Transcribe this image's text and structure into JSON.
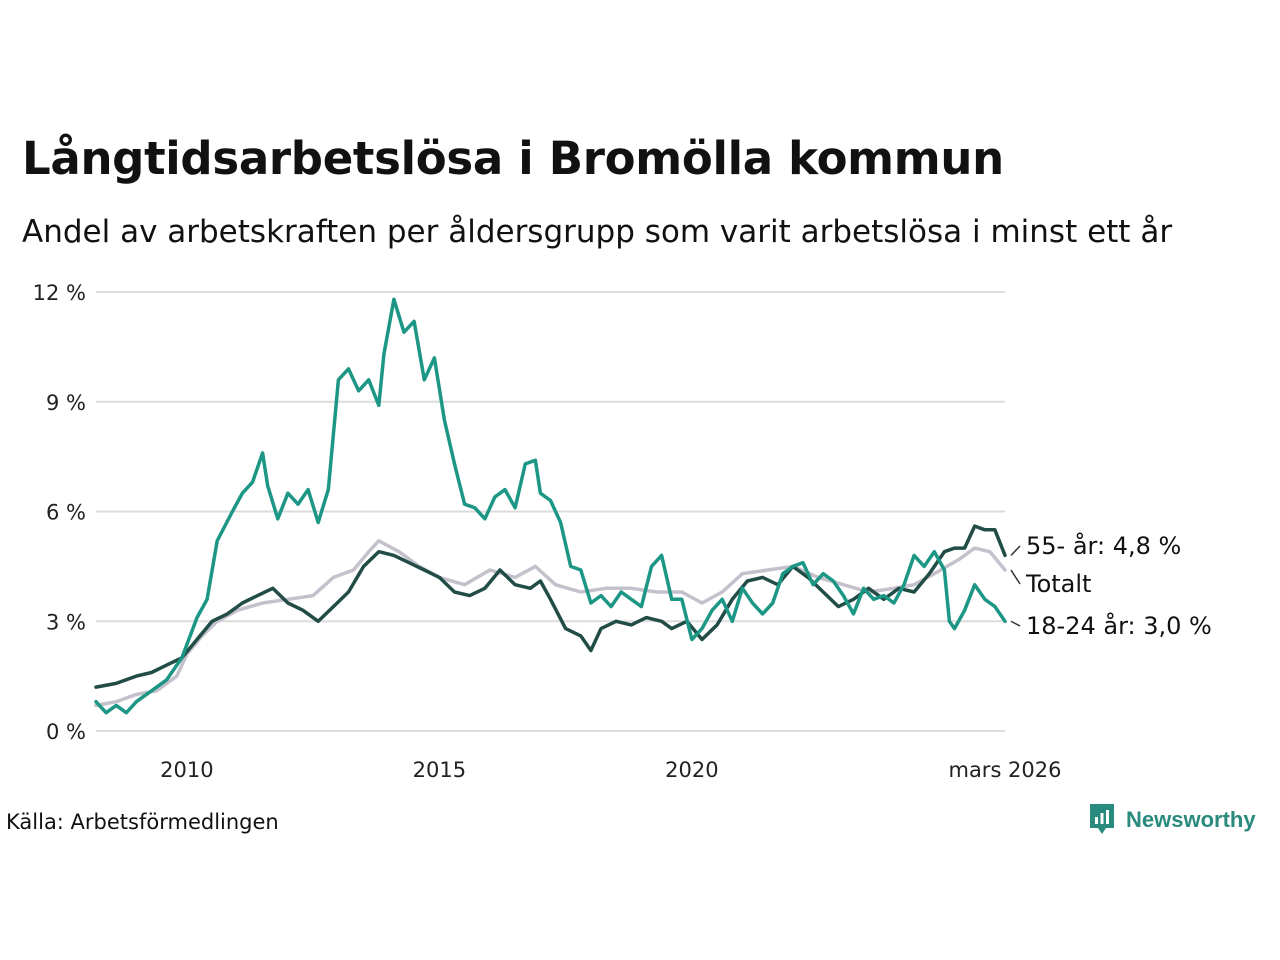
{
  "title": "Långtidsarbetslösa i Bromölla kommun",
  "subtitle": "Andel av arbetskraften per åldersgrupp som varit arbetslösa i minst ett år",
  "source": "Källa: Arbetsförmedlingen",
  "brand": {
    "name": "Newsworthy",
    "icon": "newsworthy-logo-icon",
    "color": "#2b8a7e"
  },
  "chart_data": {
    "type": "line",
    "title": "Långtidsarbetslösa i Bromölla kommun",
    "xlabel": "",
    "ylabel": "",
    "x_range": [
      2008.2,
      2026.2
    ],
    "ylim": [
      0,
      12
    ],
    "y_ticks": [
      {
        "value": 0,
        "label": "0 %"
      },
      {
        "value": 3,
        "label": "3 %"
      },
      {
        "value": 6,
        "label": "6 %"
      },
      {
        "value": 9,
        "label": "9 %"
      },
      {
        "value": 12,
        "label": "12 %"
      }
    ],
    "x_ticks": [
      {
        "value": 2010,
        "label": "2010"
      },
      {
        "value": 2015,
        "label": "2015"
      },
      {
        "value": 2020,
        "label": "2020"
      },
      {
        "value": 2026.2,
        "label": "mars 2026"
      }
    ],
    "grid": true,
    "series": [
      {
        "name": "Totalt",
        "label": "Totalt",
        "color": "#c4c0cc",
        "points": [
          [
            2008.2,
            0.7
          ],
          [
            2008.6,
            0.8
          ],
          [
            2009.0,
            1.0
          ],
          [
            2009.4,
            1.1
          ],
          [
            2009.8,
            1.5
          ],
          [
            2010.0,
            2.1
          ],
          [
            2010.3,
            2.6
          ],
          [
            2010.6,
            3.0
          ],
          [
            2011.0,
            3.3
          ],
          [
            2011.5,
            3.5
          ],
          [
            2012.0,
            3.6
          ],
          [
            2012.5,
            3.7
          ],
          [
            2012.9,
            4.2
          ],
          [
            2013.3,
            4.4
          ],
          [
            2013.6,
            4.9
          ],
          [
            2013.8,
            5.2
          ],
          [
            2014.2,
            4.9
          ],
          [
            2014.6,
            4.5
          ],
          [
            2015.0,
            4.2
          ],
          [
            2015.5,
            4.0
          ],
          [
            2016.0,
            4.4
          ],
          [
            2016.5,
            4.2
          ],
          [
            2016.9,
            4.5
          ],
          [
            2017.3,
            4.0
          ],
          [
            2017.8,
            3.8
          ],
          [
            2018.3,
            3.9
          ],
          [
            2018.8,
            3.9
          ],
          [
            2019.3,
            3.8
          ],
          [
            2019.8,
            3.8
          ],
          [
            2020.2,
            3.5
          ],
          [
            2020.6,
            3.8
          ],
          [
            2021.0,
            4.3
          ],
          [
            2021.5,
            4.4
          ],
          [
            2022.0,
            4.5
          ],
          [
            2022.5,
            4.2
          ],
          [
            2023.0,
            4.0
          ],
          [
            2023.5,
            3.8
          ],
          [
            2024.0,
            3.9
          ],
          [
            2024.4,
            4.0
          ],
          [
            2024.8,
            4.3
          ],
          [
            2025.3,
            4.7
          ],
          [
            2025.6,
            5.0
          ],
          [
            2025.9,
            4.9
          ],
          [
            2026.2,
            4.4
          ]
        ]
      },
      {
        "name": "55- år",
        "label": "55- år: 4,8 %",
        "color": "#214d46",
        "points": [
          [
            2008.2,
            1.2
          ],
          [
            2008.6,
            1.3
          ],
          [
            2009.0,
            1.5
          ],
          [
            2009.3,
            1.6
          ],
          [
            2009.6,
            1.8
          ],
          [
            2009.9,
            2.0
          ],
          [
            2010.2,
            2.5
          ],
          [
            2010.5,
            3.0
          ],
          [
            2010.8,
            3.2
          ],
          [
            2011.1,
            3.5
          ],
          [
            2011.4,
            3.7
          ],
          [
            2011.7,
            3.9
          ],
          [
            2012.0,
            3.5
          ],
          [
            2012.3,
            3.3
          ],
          [
            2012.6,
            3.0
          ],
          [
            2012.9,
            3.4
          ],
          [
            2013.2,
            3.8
          ],
          [
            2013.5,
            4.5
          ],
          [
            2013.8,
            4.9
          ],
          [
            2014.1,
            4.8
          ],
          [
            2014.4,
            4.6
          ],
          [
            2014.7,
            4.4
          ],
          [
            2015.0,
            4.2
          ],
          [
            2015.3,
            3.8
          ],
          [
            2015.6,
            3.7
          ],
          [
            2015.9,
            3.9
          ],
          [
            2016.2,
            4.4
          ],
          [
            2016.5,
            4.0
          ],
          [
            2016.8,
            3.9
          ],
          [
            2017.0,
            4.1
          ],
          [
            2017.2,
            3.6
          ],
          [
            2017.5,
            2.8
          ],
          [
            2017.8,
            2.6
          ],
          [
            2018.0,
            2.2
          ],
          [
            2018.2,
            2.8
          ],
          [
            2018.5,
            3.0
          ],
          [
            2018.8,
            2.9
          ],
          [
            2019.1,
            3.1
          ],
          [
            2019.4,
            3.0
          ],
          [
            2019.6,
            2.8
          ],
          [
            2019.9,
            3.0
          ],
          [
            2020.2,
            2.5
          ],
          [
            2020.5,
            2.9
          ],
          [
            2020.8,
            3.6
          ],
          [
            2021.1,
            4.1
          ],
          [
            2021.4,
            4.2
          ],
          [
            2021.7,
            4.0
          ],
          [
            2022.0,
            4.5
          ],
          [
            2022.3,
            4.2
          ],
          [
            2022.6,
            3.8
          ],
          [
            2022.9,
            3.4
          ],
          [
            2023.2,
            3.6
          ],
          [
            2023.5,
            3.9
          ],
          [
            2023.8,
            3.6
          ],
          [
            2024.1,
            3.9
          ],
          [
            2024.4,
            3.8
          ],
          [
            2024.7,
            4.3
          ],
          [
            2025.0,
            4.9
          ],
          [
            2025.2,
            5.0
          ],
          [
            2025.4,
            5.0
          ],
          [
            2025.6,
            5.6
          ],
          [
            2025.8,
            5.5
          ],
          [
            2026.0,
            5.5
          ],
          [
            2026.2,
            4.8
          ]
        ]
      },
      {
        "name": "18-24 år",
        "label": "18-24 år: 3,0 %",
        "color": "#1c9685",
        "points": [
          [
            2008.2,
            0.8
          ],
          [
            2008.4,
            0.5
          ],
          [
            2008.6,
            0.7
          ],
          [
            2008.8,
            0.5
          ],
          [
            2009.0,
            0.8
          ],
          [
            2009.3,
            1.1
          ],
          [
            2009.6,
            1.4
          ],
          [
            2009.9,
            2.0
          ],
          [
            2010.2,
            3.1
          ],
          [
            2010.4,
            3.6
          ],
          [
            2010.6,
            5.2
          ],
          [
            2010.9,
            6.0
          ],
          [
            2011.1,
            6.5
          ],
          [
            2011.3,
            6.8
          ],
          [
            2011.5,
            7.6
          ],
          [
            2011.6,
            6.7
          ],
          [
            2011.8,
            5.8
          ],
          [
            2012.0,
            6.5
          ],
          [
            2012.2,
            6.2
          ],
          [
            2012.4,
            6.6
          ],
          [
            2012.6,
            5.7
          ],
          [
            2012.8,
            6.6
          ],
          [
            2013.0,
            9.6
          ],
          [
            2013.2,
            9.9
          ],
          [
            2013.4,
            9.3
          ],
          [
            2013.6,
            9.6
          ],
          [
            2013.8,
            8.9
          ],
          [
            2013.9,
            10.3
          ],
          [
            2014.1,
            11.8
          ],
          [
            2014.3,
            10.9
          ],
          [
            2014.5,
            11.2
          ],
          [
            2014.7,
            9.6
          ],
          [
            2014.9,
            10.2
          ],
          [
            2015.1,
            8.5
          ],
          [
            2015.3,
            7.3
          ],
          [
            2015.5,
            6.2
          ],
          [
            2015.7,
            6.1
          ],
          [
            2015.9,
            5.8
          ],
          [
            2016.1,
            6.4
          ],
          [
            2016.3,
            6.6
          ],
          [
            2016.5,
            6.1
          ],
          [
            2016.7,
            7.3
          ],
          [
            2016.9,
            7.4
          ],
          [
            2017.0,
            6.5
          ],
          [
            2017.2,
            6.3
          ],
          [
            2017.4,
            5.7
          ],
          [
            2017.6,
            4.5
          ],
          [
            2017.8,
            4.4
          ],
          [
            2018.0,
            3.5
          ],
          [
            2018.2,
            3.7
          ],
          [
            2018.4,
            3.4
          ],
          [
            2018.6,
            3.8
          ],
          [
            2018.8,
            3.6
          ],
          [
            2019.0,
            3.4
          ],
          [
            2019.2,
            4.5
          ],
          [
            2019.4,
            4.8
          ],
          [
            2019.6,
            3.6
          ],
          [
            2019.8,
            3.6
          ],
          [
            2020.0,
            2.5
          ],
          [
            2020.2,
            2.8
          ],
          [
            2020.4,
            3.3
          ],
          [
            2020.6,
            3.6
          ],
          [
            2020.8,
            3.0
          ],
          [
            2021.0,
            3.9
          ],
          [
            2021.2,
            3.5
          ],
          [
            2021.4,
            3.2
          ],
          [
            2021.6,
            3.5
          ],
          [
            2021.8,
            4.3
          ],
          [
            2022.0,
            4.5
          ],
          [
            2022.2,
            4.6
          ],
          [
            2022.4,
            4.0
          ],
          [
            2022.6,
            4.3
          ],
          [
            2022.8,
            4.1
          ],
          [
            2023.0,
            3.7
          ],
          [
            2023.2,
            3.2
          ],
          [
            2023.4,
            3.9
          ],
          [
            2023.6,
            3.6
          ],
          [
            2023.8,
            3.7
          ],
          [
            2024.0,
            3.5
          ],
          [
            2024.2,
            4.0
          ],
          [
            2024.4,
            4.8
          ],
          [
            2024.6,
            4.5
          ],
          [
            2024.8,
            4.9
          ],
          [
            2025.0,
            4.4
          ],
          [
            2025.1,
            3.0
          ],
          [
            2025.2,
            2.8
          ],
          [
            2025.4,
            3.3
          ],
          [
            2025.6,
            4.0
          ],
          [
            2025.8,
            3.6
          ],
          [
            2026.0,
            3.4
          ],
          [
            2026.2,
            3.0
          ]
        ]
      }
    ]
  }
}
